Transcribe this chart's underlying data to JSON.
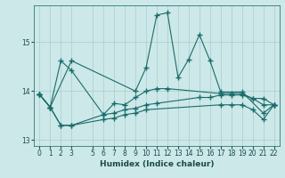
{
  "background_color": "#cde8e8",
  "grid_color": "#aacccc",
  "line_color": "#1a6b6b",
  "xlabel": "Humidex (Indice chaleur)",
  "xlim": [
    -0.5,
    22.5
  ],
  "ylim": [
    12.88,
    15.75
  ],
  "yticks": [
    13,
    14,
    15
  ],
  "xticks": [
    0,
    1,
    2,
    3,
    5,
    6,
    7,
    8,
    9,
    10,
    11,
    12,
    13,
    14,
    15,
    16,
    17,
    18,
    19,
    20,
    21,
    22
  ],
  "lines": [
    {
      "x": [
        0,
        1,
        3,
        9,
        10,
        11,
        12,
        13,
        14,
        15,
        16,
        17,
        19,
        21,
        22
      ],
      "y": [
        13.93,
        13.67,
        14.62,
        14.0,
        14.48,
        15.55,
        15.6,
        14.28,
        14.65,
        15.15,
        14.62,
        13.98,
        13.98,
        13.55,
        13.72
      ]
    },
    {
      "x": [
        0,
        1,
        2,
        3,
        6,
        7,
        8,
        9,
        10,
        11,
        12,
        17,
        18,
        19,
        20,
        21,
        22
      ],
      "y": [
        13.93,
        13.67,
        14.62,
        14.42,
        13.52,
        13.75,
        13.72,
        13.87,
        14.0,
        14.05,
        14.05,
        13.95,
        13.95,
        13.95,
        13.85,
        13.85,
        13.72
      ]
    },
    {
      "x": [
        0,
        1,
        2,
        3,
        6,
        7,
        8,
        9,
        10,
        11,
        15,
        16,
        17,
        18,
        19,
        20,
        21,
        22
      ],
      "y": [
        13.93,
        13.67,
        13.3,
        13.3,
        13.52,
        13.55,
        13.62,
        13.65,
        13.72,
        13.75,
        13.87,
        13.87,
        13.92,
        13.92,
        13.92,
        13.85,
        13.72,
        13.72
      ]
    },
    {
      "x": [
        0,
        1,
        2,
        3,
        6,
        7,
        8,
        9,
        10,
        17,
        18,
        19,
        20,
        21,
        22
      ],
      "y": [
        13.93,
        13.67,
        13.3,
        13.3,
        13.42,
        13.45,
        13.52,
        13.55,
        13.62,
        13.72,
        13.72,
        13.72,
        13.62,
        13.42,
        13.72
      ]
    }
  ]
}
